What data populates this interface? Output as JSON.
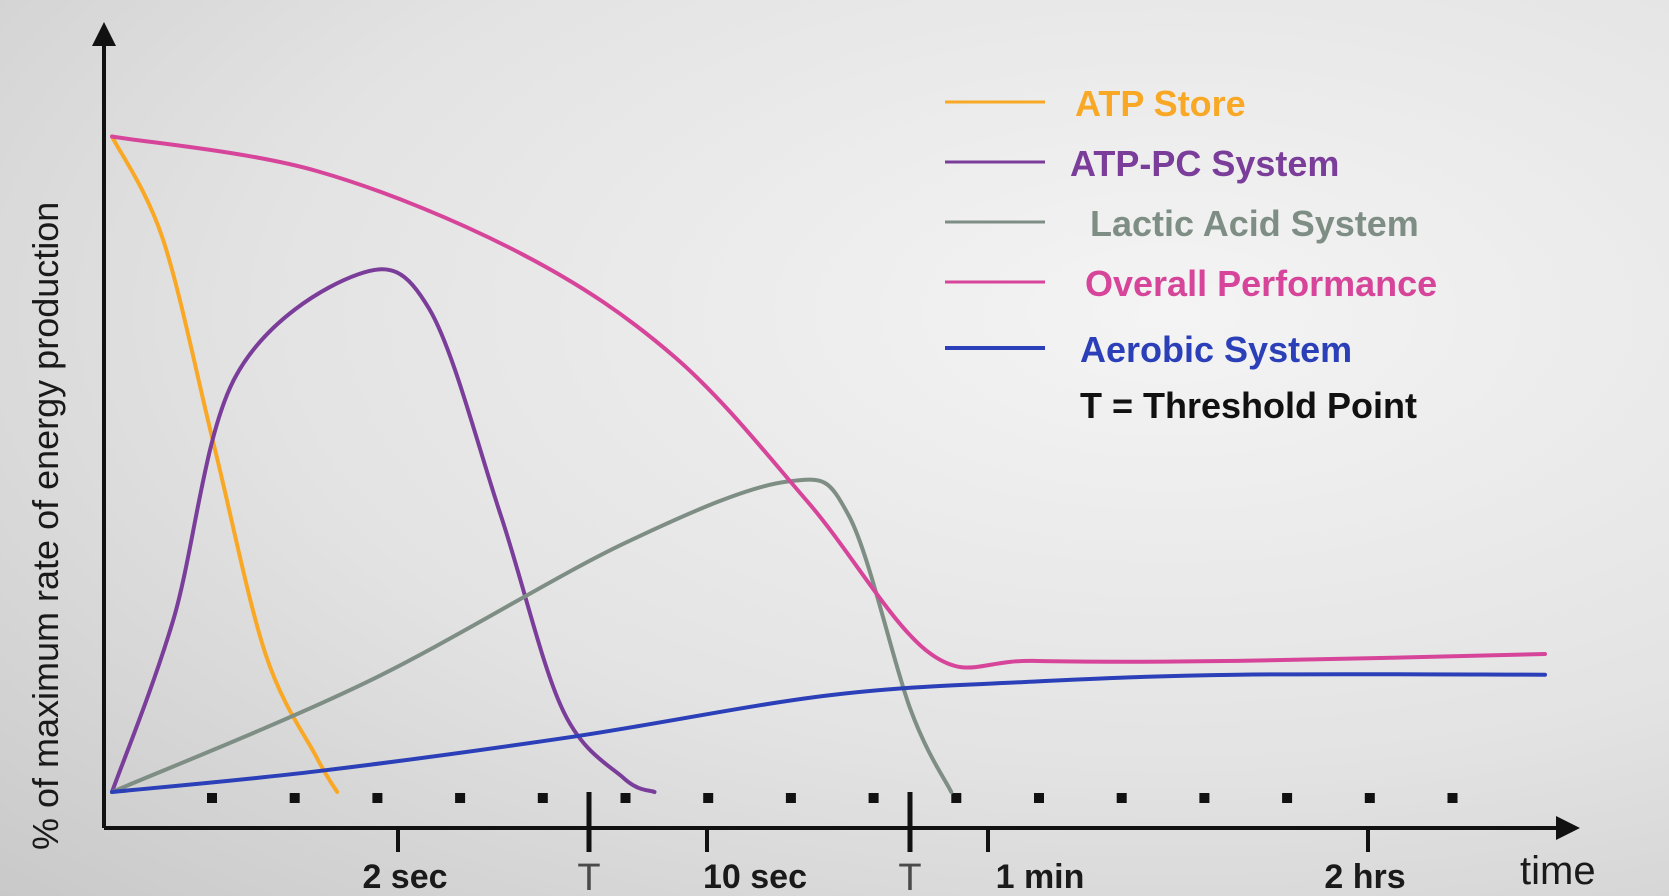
{
  "chart_data": {
    "type": "line",
    "title": "",
    "xlabel": "time",
    "ylabel": "% of maximum rate of energy production",
    "x_tick_labels": [
      "2 sec",
      "10 sec",
      "1 min",
      "2 hrs"
    ],
    "threshold_marker": "T",
    "threshold_ticks": [
      {
        "label": "T",
        "between": [
          "2 sec",
          "10 sec"
        ]
      },
      {
        "label": "T",
        "between": [
          "10 sec",
          "1 min"
        ]
      }
    ],
    "y_scale": "relative (0–100%), no tick labels",
    "grid": false,
    "legend_position": "top-right",
    "series": [
      {
        "name": "ATP Store",
        "color": "#f9a826",
        "x": [
          0,
          0.5,
          1,
          1.5,
          2,
          2.2
        ],
        "y": [
          95,
          80,
          50,
          20,
          5,
          0
        ]
      },
      {
        "name": "ATP-PC System",
        "color": "#7a3d9a",
        "x": [
          0,
          0.6,
          1.2,
          2.4,
          3.1,
          3.8,
          4.4,
          5,
          5.3
        ],
        "y": [
          0,
          25,
          60,
          75,
          70,
          40,
          12,
          2,
          0
        ]
      },
      {
        "name": "Lactic Acid System",
        "color": "#7e8e84",
        "x": [
          0,
          2.5,
          5,
          6.6,
          7.2,
          7.8,
          8.2
        ],
        "y": [
          0,
          16,
          36,
          45,
          40,
          12,
          0
        ]
      },
      {
        "name": "Overall Performance",
        "color": "#d6459a",
        "x": [
          0,
          2,
          4,
          5.5,
          6.8,
          8,
          9,
          11,
          14
        ],
        "y": [
          95,
          90,
          78,
          63,
          42,
          20,
          19,
          19,
          20
        ]
      },
      {
        "name": "Aerobic System",
        "color": "#2a3fb8",
        "x": [
          0,
          2,
          4.5,
          7,
          9,
          11,
          14
        ],
        "y": [
          0,
          3,
          8,
          14,
          16,
          17,
          17
        ]
      }
    ],
    "legend_extra": "T = Threshold Point"
  }
}
